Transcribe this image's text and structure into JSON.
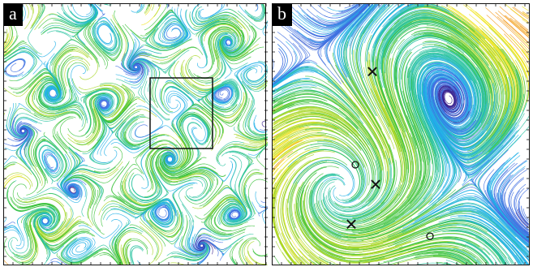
{
  "panels": [
    {
      "label": "a",
      "description_name": "full-domain"
    },
    {
      "label": "b",
      "description_name": "zoom-region"
    }
  ],
  "colors": {
    "scale": [
      "#3a1f8c",
      "#3f6fe0",
      "#21b0e8",
      "#29c3a0",
      "#39c23a",
      "#a6d622",
      "#f0e41e",
      "#f29a1d",
      "#e8331c"
    ],
    "frame": "#111111"
  },
  "markers": {
    "saddle_symbol": "✕",
    "center_symbol": "o"
  }
}
